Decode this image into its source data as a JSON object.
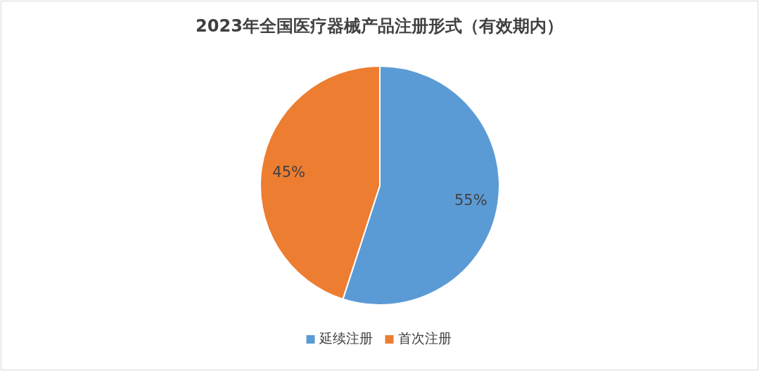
{
  "chart_data": {
    "type": "pie",
    "title": "2023年全国医疗器械产品注册形式（有效期内）",
    "categories": [
      "延续注册",
      "首次注册"
    ],
    "values": [
      55,
      45
    ],
    "colors": [
      "#5b9bd5",
      "#ed7d31"
    ],
    "value_labels": [
      "55%",
      "45%"
    ],
    "legend": "bottom"
  }
}
